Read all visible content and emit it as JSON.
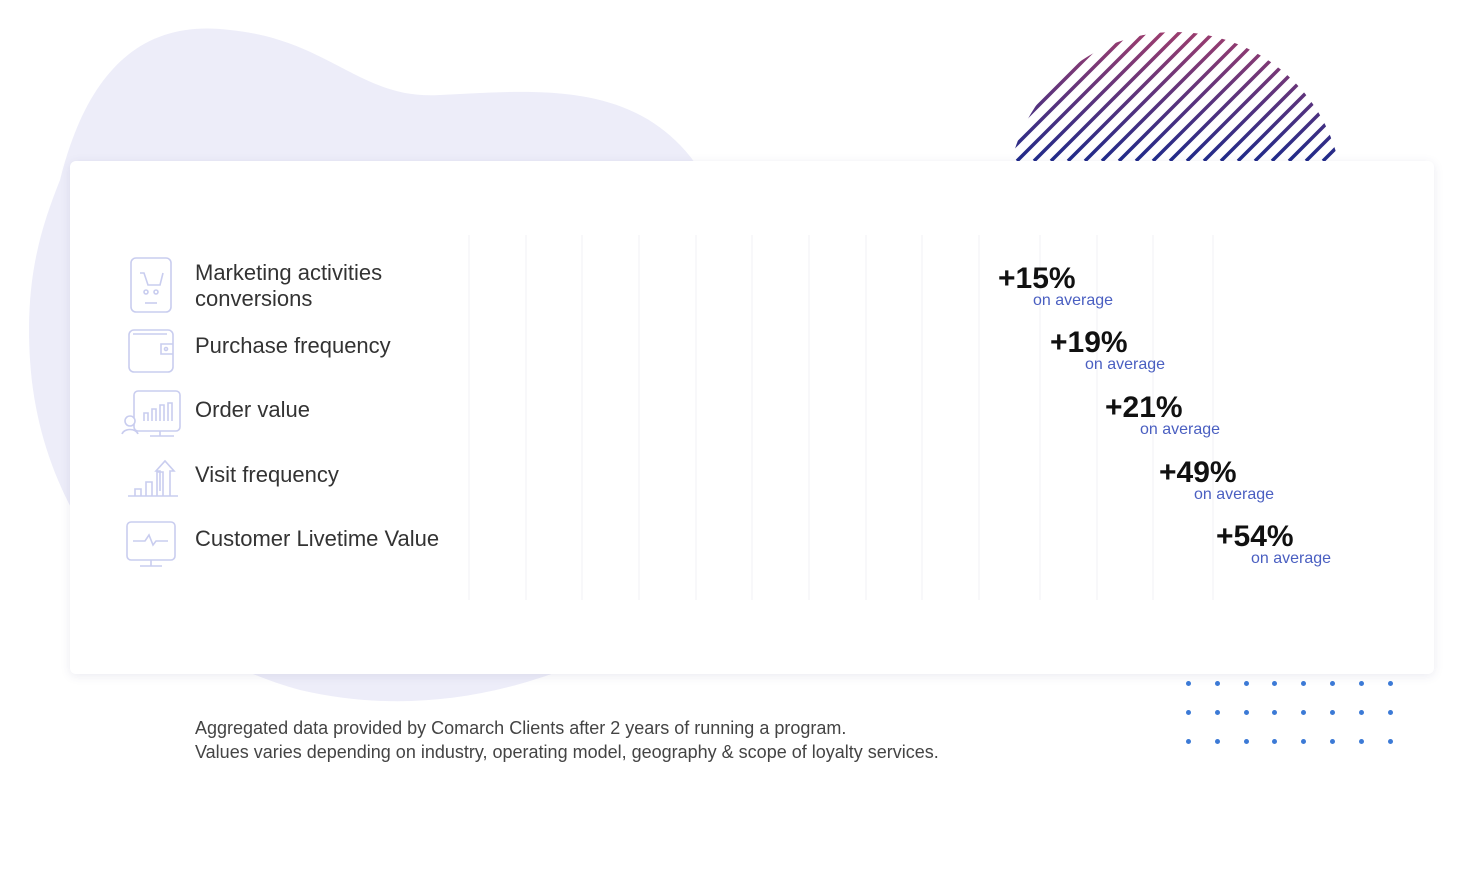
{
  "chart_data": {
    "type": "bar",
    "orientation": "horizontal",
    "categories": [
      "Marketing activities conversions",
      "Purchase frequency",
      "Order value",
      "Visit frequency",
      "Customer Livetime Value"
    ],
    "values": [
      15,
      19,
      21,
      49,
      54
    ],
    "value_labels": [
      "+15%",
      "+19%",
      "+21%",
      "+49%",
      "+54%"
    ],
    "value_sublabel": "on average",
    "icons": [
      "shopping-cart-phone-icon",
      "wallet-icon",
      "user-chart-monitor-icon",
      "growth-chart-icon",
      "monitor-pulse-icon"
    ],
    "grid": true,
    "bar_gradient": [
      "#1a2a8c",
      "#00a88e"
    ]
  },
  "labels": {
    "cat0_line1": "Marketing activities",
    "cat0_line2": "conversions"
  },
  "footnote": {
    "line1": "Aggregated data provided by Comarch Clients after 2 years of running a program.",
    "line2": "Values varies depending on industry, operating model, geography & scope of loyalty services."
  },
  "colors": {
    "blob": "#ededf9",
    "stripe_start": "#1f2a8a",
    "stripe_end": "#e0475f",
    "dots": "#3c7ad6",
    "sublabel": "#4a5fc1"
  }
}
